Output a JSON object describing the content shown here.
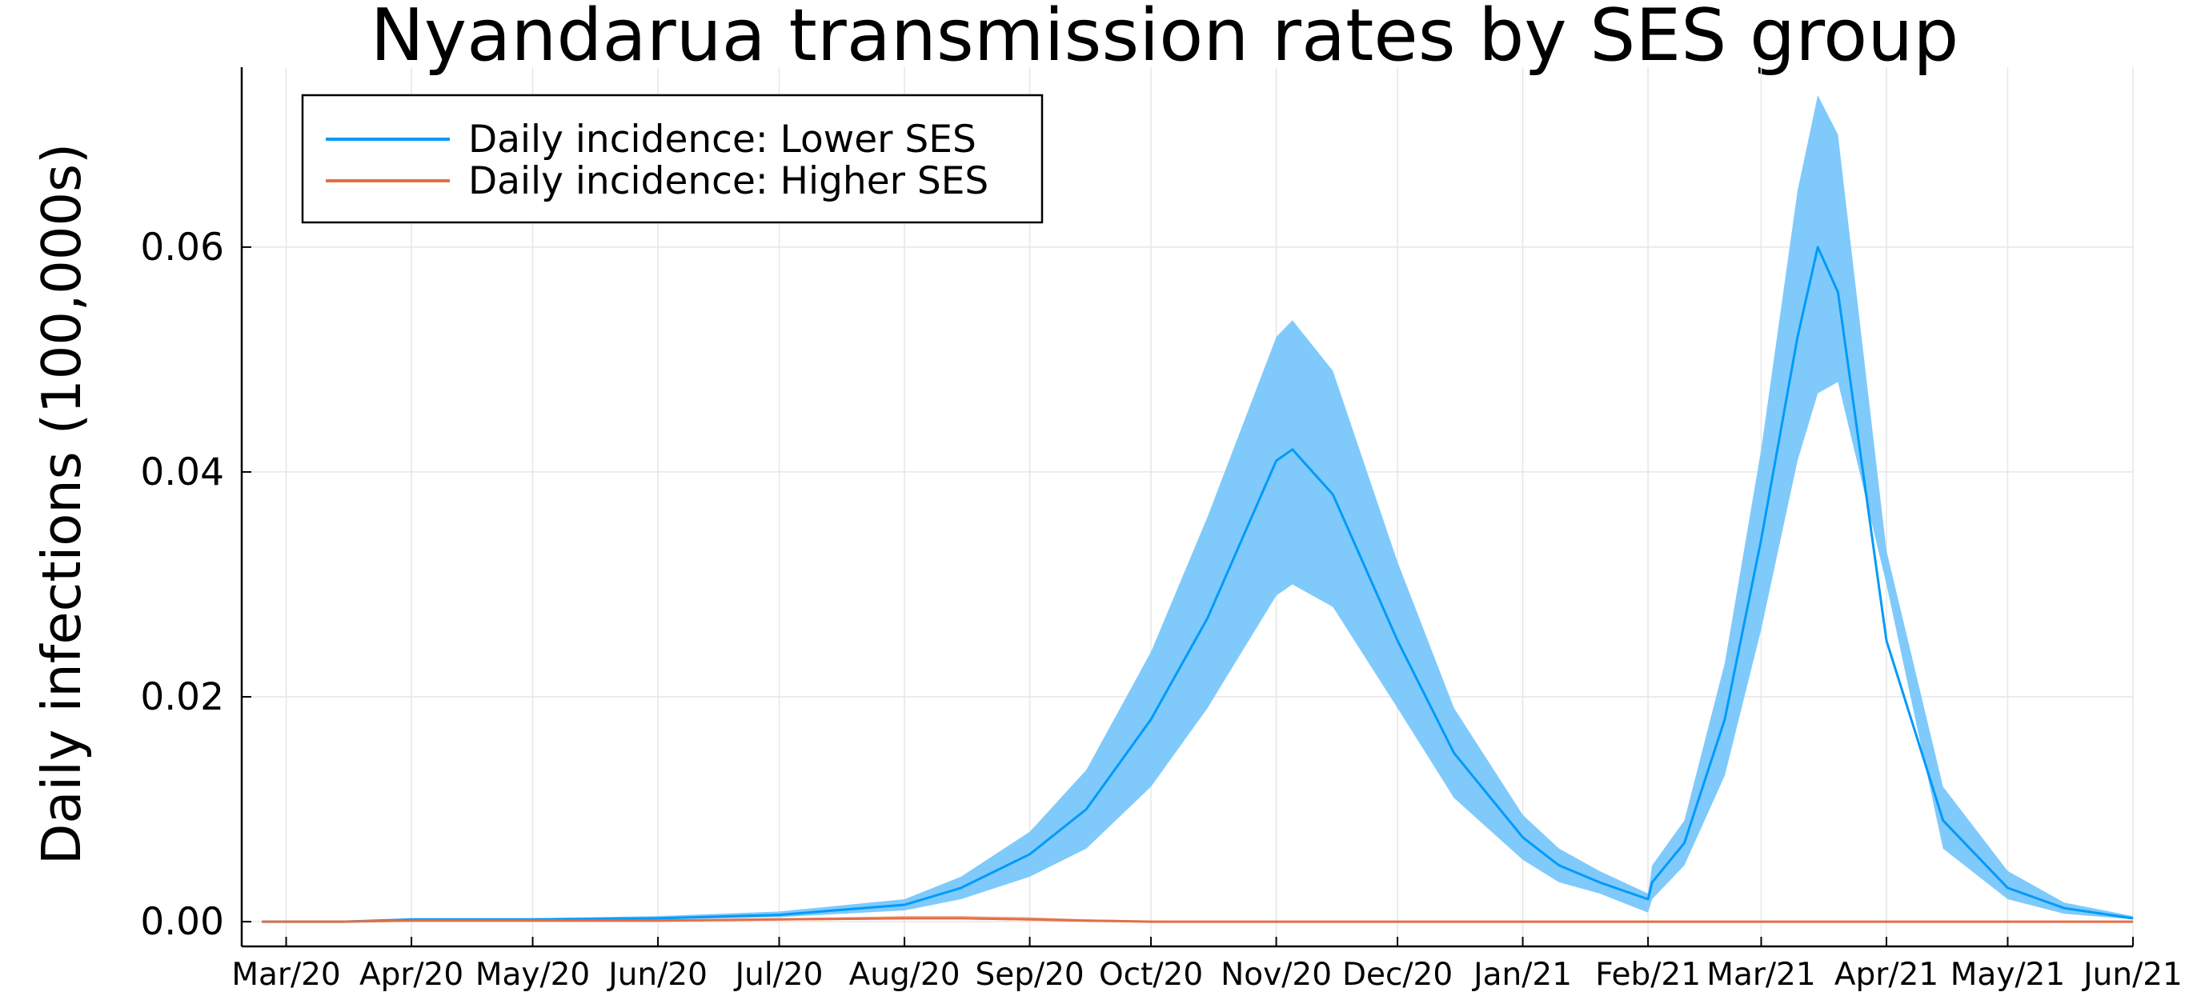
{
  "chart_data": {
    "type": "line",
    "title": "Nyandarua transmission rates by SES group",
    "ylabel": "Daily infections (100,000s)",
    "xlabel": "",
    "ylim": [
      -0.0022,
      0.076
    ],
    "xlim": [
      "2020-02-19",
      "2021-06-01"
    ],
    "grid": true,
    "legend_position": "top-left",
    "x_ticks": [
      "2020-03-01",
      "2020-04-01",
      "2020-05-01",
      "2020-06-01",
      "2020-07-01",
      "2020-08-01",
      "2020-09-01",
      "2020-10-01",
      "2020-11-01",
      "2020-12-01",
      "2021-01-01",
      "2021-02-01",
      "2021-03-01",
      "2021-04-01",
      "2021-05-01",
      "2021-06-01"
    ],
    "x_tick_labels": [
      "Mar/20",
      "Apr/20",
      "May/20",
      "Jun/20",
      "Jul/20",
      "Aug/20",
      "Sep/20",
      "Oct/20",
      "Nov/20",
      "Dec/20",
      "Jan/21",
      "Feb/21",
      "Mar/21",
      "Apr/21",
      "May/21",
      "Jun/21"
    ],
    "y_ticks": [
      0,
      0.02,
      0.04,
      0.06
    ],
    "y_tick_labels": [
      "0.00",
      "0.02",
      "0.04",
      "0.06"
    ],
    "x": [
      "2020-02-24",
      "2020-03-15",
      "2020-04-01",
      "2020-05-01",
      "2020-06-01",
      "2020-07-01",
      "2020-08-01",
      "2020-08-15",
      "2020-09-01",
      "2020-09-15",
      "2020-10-01",
      "2020-10-15",
      "2020-11-01",
      "2020-11-05",
      "2020-11-15",
      "2020-12-01",
      "2020-12-15",
      "2021-01-01",
      "2021-01-10",
      "2021-01-20",
      "2021-02-01",
      "2021-02-02",
      "2021-02-10",
      "2021-02-20",
      "2021-03-01",
      "2021-03-10",
      "2021-03-15",
      "2021-03-20",
      "2021-04-01",
      "2021-04-15",
      "2021-05-01",
      "2021-05-15",
      "2021-06-01"
    ],
    "series": [
      {
        "name": "Daily incidence: Lower SES",
        "color": "#009AFA",
        "values": [
          0.0,
          0.0,
          0.0002,
          0.0002,
          0.0003,
          0.0006,
          0.0015,
          0.003,
          0.006,
          0.01,
          0.018,
          0.027,
          0.041,
          0.042,
          0.038,
          0.025,
          0.015,
          0.0075,
          0.005,
          0.0035,
          0.002,
          0.0035,
          0.007,
          0.018,
          0.034,
          0.052,
          0.06,
          0.056,
          0.025,
          0.009,
          0.003,
          0.0012,
          0.0003
        ],
        "band_lower": [
          0.0,
          0.0,
          0.0001,
          0.0001,
          0.0002,
          0.0004,
          0.001,
          0.002,
          0.004,
          0.0065,
          0.012,
          0.019,
          0.029,
          0.03,
          0.028,
          0.019,
          0.011,
          0.0055,
          0.0035,
          0.0025,
          0.0008,
          0.002,
          0.005,
          0.013,
          0.026,
          0.041,
          0.047,
          0.048,
          0.03,
          0.0065,
          0.002,
          0.0007,
          0.0002
        ],
        "band_upper": [
          0.0,
          0.0,
          0.0003,
          0.0003,
          0.0005,
          0.0009,
          0.002,
          0.004,
          0.008,
          0.0135,
          0.024,
          0.036,
          0.052,
          0.0535,
          0.049,
          0.032,
          0.019,
          0.0095,
          0.0065,
          0.0045,
          0.0025,
          0.005,
          0.009,
          0.023,
          0.042,
          0.065,
          0.0735,
          0.07,
          0.033,
          0.012,
          0.0045,
          0.0017,
          0.0005
        ]
      },
      {
        "name": "Daily incidence: Higher SES",
        "color": "#E26F46",
        "values": [
          0.0,
          0.0,
          0.0001,
          0.0001,
          0.0001,
          0.0002,
          0.0003,
          0.0003,
          0.0002,
          0.0001,
          0.0,
          0.0,
          0.0,
          0.0,
          0.0,
          0.0,
          0.0,
          0.0,
          0.0,
          0.0,
          0.0,
          0.0,
          0.0,
          0.0,
          0.0,
          0.0,
          0.0,
          0.0,
          0.0,
          0.0,
          0.0,
          0.0,
          0.0
        ],
        "band_lower": [
          0.0,
          0.0,
          0.0,
          0.0,
          0.0,
          0.0001,
          0.0002,
          0.0002,
          0.0001,
          0.0,
          0.0,
          0.0,
          0.0,
          0.0,
          0.0,
          0.0,
          0.0,
          0.0,
          0.0,
          0.0,
          0.0,
          0.0,
          0.0,
          0.0,
          0.0,
          0.0,
          0.0,
          0.0,
          0.0,
          0.0,
          0.0,
          0.0,
          0.0
        ],
        "band_upper": [
          0.0,
          0.0,
          0.0001,
          0.0001,
          0.0002,
          0.0003,
          0.0005,
          0.0005,
          0.0004,
          0.0002,
          0.0001,
          0.0,
          0.0,
          0.0,
          0.0,
          0.0,
          0.0,
          0.0,
          0.0,
          0.0,
          0.0,
          0.0,
          0.0,
          0.0,
          0.0,
          0.0,
          0.0,
          0.0,
          0.0,
          0.0,
          0.0,
          0.0,
          0.0
        ]
      }
    ]
  }
}
